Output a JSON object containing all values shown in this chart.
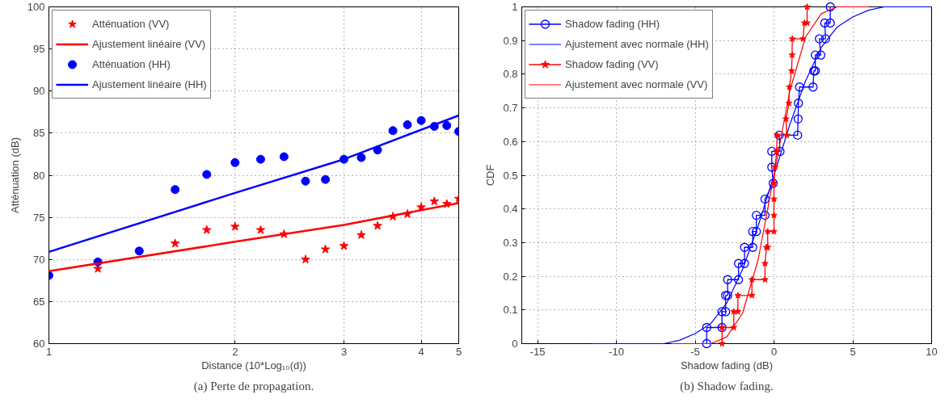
{
  "chart_data": [
    {
      "type": "scatter",
      "xlabel": "Distance (10*Log₁₀(d))",
      "ylabel": "Atténuation (dB)",
      "annotations": [
        "(a) Perte de propagation."
      ],
      "log": "x",
      "xlim": [
        1,
        4.6
      ],
      "xticks": [
        1,
        2,
        3,
        4,
        {
          "value": 4.6,
          "label": "5"
        }
      ],
      "ylim": [
        60,
        100
      ],
      "yticks": [
        60,
        65,
        70,
        75,
        80,
        85,
        90,
        95,
        100
      ],
      "grid": true,
      "legend": "top left",
      "series": [
        {
          "name": "Atténuation (VV)",
          "type": "scatter",
          "marker": "star",
          "color": "#ff0000",
          "x": [
            1.2,
            1.6,
            1.8,
            2.0,
            2.2,
            2.4,
            2.6,
            2.8,
            3.0,
            3.2,
            3.4,
            3.6,
            3.8,
            4.0,
            4.2,
            4.4,
            4.6
          ],
          "values": [
            68.9,
            71.9,
            73.5,
            73.9,
            73.5,
            73.0,
            70.0,
            71.2,
            71.6,
            72.9,
            74.0,
            75.1,
            75.4,
            76.2,
            76.9,
            76.6,
            77.2
          ]
        },
        {
          "name": "Ajustement linéaire (VV)",
          "type": "line",
          "marker": "none",
          "color": "#ff0000",
          "x": [
            1,
            2,
            3,
            4.6
          ],
          "values": [
            68.6,
            72.1,
            74.1,
            76.7
          ]
        },
        {
          "name": "Atténuation (HH)",
          "type": "scatter",
          "marker": "circle",
          "color": "#0000ff",
          "x": [
            1,
            1.2,
            1.4,
            1.6,
            1.8,
            2.0,
            2.2,
            2.4,
            2.6,
            2.8,
            3.0,
            3.2,
            3.4,
            3.6,
            3.8,
            4.0,
            4.2,
            4.4,
            4.6
          ],
          "values": [
            68.1,
            69.7,
            71.0,
            78.3,
            80.1,
            81.5,
            81.9,
            82.2,
            79.3,
            79.5,
            81.9,
            82.1,
            83.0,
            85.3,
            86.0,
            86.5,
            85.8,
            85.9,
            85.2
          ]
        },
        {
          "name": "Ajustement linéaire (HH)",
          "type": "line",
          "marker": "none",
          "color": "#0000ff",
          "x": [
            1,
            2,
            3,
            4.6
          ],
          "values": [
            70.9,
            77.9,
            81.9,
            87.1
          ]
        }
      ]
    },
    {
      "type": "line",
      "xlabel": "Shadow fading (dB)",
      "ylabel": "CDF",
      "annotations": [
        "(b) Shadow fading."
      ],
      "xlim": [
        -16,
        10
      ],
      "xticks": [
        -15,
        -10,
        -5,
        0,
        5,
        10
      ],
      "ylim": [
        0,
        1
      ],
      "yticks": [
        0,
        0.1,
        0.2,
        0.3,
        0.4,
        0.5,
        0.6,
        0.7,
        0.8,
        0.9,
        1
      ],
      "grid": true,
      "legend": "top left",
      "series": [
        {
          "name": "Shadow fading (HH)",
          "type": "line",
          "marker": "circle",
          "color": "#0000ff",
          "x": [
            -4.27,
            -4.27,
            -3.3,
            -3.3,
            -3.07,
            -3.07,
            -2.94,
            -2.94,
            -2.25,
            -2.25,
            -1.87,
            -1.87,
            -1.35,
            -1.35,
            -1.12,
            -1.12,
            -0.57,
            -0.57,
            -0.05,
            -0.14,
            -0.14,
            0.38,
            0.33,
            1.5,
            1.53,
            1.55,
            1.62,
            2.48,
            2.53,
            2.62,
            2.62,
            2.97,
            2.88,
            3.27,
            3.22,
            3.57,
            3.57
          ],
          "values": [
            0,
            0.048,
            0.048,
            0.095,
            0.095,
            0.143,
            0.143,
            0.19,
            0.19,
            0.238,
            0.238,
            0.286,
            0.286,
            0.333,
            0.333,
            0.381,
            0.381,
            0.429,
            0.476,
            0.524,
            0.571,
            0.571,
            0.619,
            0.619,
            0.667,
            0.714,
            0.762,
            0.762,
            0.81,
            0.81,
            0.857,
            0.857,
            0.905,
            0.905,
            0.952,
            0.952,
            1.0
          ]
        },
        {
          "name": "Ajustement avec normale (HH)",
          "type": "line",
          "marker": "none",
          "color": "#0000ff",
          "x": [
            -11.5,
            -9,
            -8,
            -7,
            -6,
            -5,
            -4,
            -3,
            -2,
            -1,
            0,
            1,
            2,
            3,
            4,
            5,
            6,
            7,
            7.5,
            10
          ],
          "values": [
            0,
            0,
            0,
            0,
            0.01,
            0.03,
            0.06,
            0.12,
            0.22,
            0.35,
            0.5,
            0.65,
            0.78,
            0.88,
            0.94,
            0.97,
            0.99,
            1.0,
            1.0,
            1.0
          ]
        },
        {
          "name": "Shadow fading (VV)",
          "type": "line",
          "marker": "star",
          "color": "#ff0000",
          "x": [
            -3.29,
            -3.29,
            -2.55,
            -2.55,
            -2.29,
            -2.29,
            -1.4,
            -1.4,
            -0.57,
            -0.57,
            -0.48,
            -0.4,
            -0.4,
            0,
            0,
            0,
            0,
            0.07,
            0.17,
            0.2,
            0.81,
            0.76,
            0.95,
            0.98,
            1.12,
            1.15,
            1.16,
            1.84,
            1.93,
            2.1,
            2.1
          ],
          "values": [
            0,
            0.048,
            0.048,
            0.095,
            0.095,
            0.143,
            0.143,
            0.19,
            0.19,
            0.238,
            0.286,
            0.286,
            0.333,
            0.333,
            0.381,
            0.429,
            0.476,
            0.524,
            0.571,
            0.619,
            0.619,
            0.667,
            0.714,
            0.762,
            0.81,
            0.857,
            0.905,
            0.905,
            0.952,
            0.952,
            1.0
          ]
        },
        {
          "name": "Ajustement avec normale (VV)",
          "type": "line",
          "marker": "none",
          "color": "#ff0000",
          "x": [
            -6.5,
            -5,
            -4,
            -3,
            -2,
            -1,
            0,
            1,
            2,
            3,
            4,
            6
          ],
          "values": [
            0,
            0,
            0,
            0.02,
            0.09,
            0.25,
            0.5,
            0.75,
            0.91,
            0.98,
            1.0,
            1.0
          ]
        }
      ]
    }
  ]
}
